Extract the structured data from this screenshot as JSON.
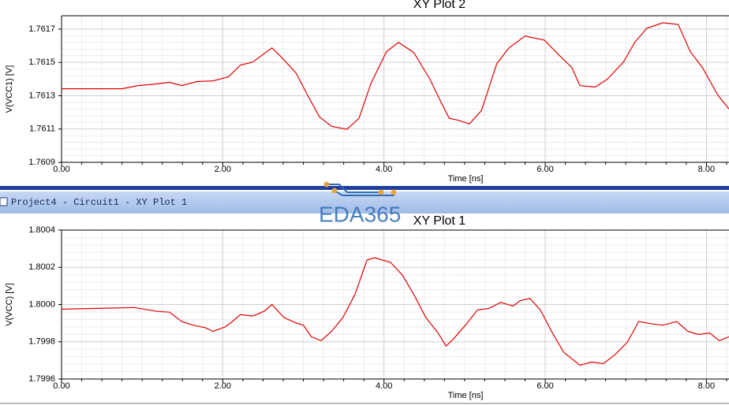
{
  "window_title": "Project4 - Circuit1 - XY Plot 1",
  "watermark": "EDA365",
  "chart_data": [
    {
      "type": "line",
      "title": "XY Plot 2",
      "x_label": "Time [ns]",
      "y_label": "V(VCC1) [V]",
      "xlim": [
        0,
        8.28
      ],
      "ylim": [
        1.7609,
        1.76178
      ],
      "xticks": [
        {
          "value": 0,
          "label": "0.00"
        },
        {
          "value": 2,
          "label": "2.00"
        },
        {
          "value": 4,
          "label": "4.00"
        },
        {
          "value": 6,
          "label": "6.00"
        },
        {
          "value": 8,
          "label": "8.00"
        }
      ],
      "yticks": [
        1.7609,
        1.7611,
        1.7613,
        1.7615,
        1.7617
      ],
      "grid": true,
      "series": [
        {
          "color": "#e00000",
          "x": [
            0,
            0.75,
            0.95,
            1.19,
            1.34,
            1.49,
            1.68,
            1.88,
            2.07,
            2.22,
            2.37,
            2.61,
            2.71,
            2.91,
            3.05,
            3.2,
            3.35,
            3.54,
            3.69,
            3.84,
            4.03,
            4.18,
            4.37,
            4.57,
            4.72,
            4.81,
            4.91,
            5.06,
            5.21,
            5.4,
            5.55,
            5.75,
            5.99,
            6.18,
            6.33,
            6.43,
            6.62,
            6.77,
            6.97,
            7.11,
            7.26,
            7.46,
            7.65,
            7.8,
            7.95,
            8.14,
            8.28
          ],
          "values": [
            1.761342,
            1.761342,
            1.761361,
            1.761371,
            1.76138,
            1.761361,
            1.761385,
            1.761389,
            1.761413,
            1.761484,
            1.761502,
            1.761587,
            1.76154,
            1.761436,
            1.761305,
            1.761173,
            1.761116,
            1.761098,
            1.761164,
            1.761375,
            1.761564,
            1.76162,
            1.761559,
            1.761399,
            1.761248,
            1.761164,
            1.761154,
            1.761131,
            1.761211,
            1.761493,
            1.761587,
            1.761658,
            1.761634,
            1.76154,
            1.761469,
            1.761361,
            1.761352,
            1.761399,
            1.761502,
            1.76162,
            1.761705,
            1.761738,
            1.761728,
            1.761564,
            1.761469,
            1.761305,
            1.76122
          ]
        }
      ]
    },
    {
      "type": "line",
      "title": "XY Plot 1",
      "x_label": "Time [ns]",
      "y_label": "V(VCC) [V]",
      "xlim": [
        0,
        8.28
      ],
      "ylim": [
        1.7996,
        1.8004
      ],
      "xticks": [
        {
          "value": 0,
          "label": "0.00"
        },
        {
          "value": 2,
          "label": "2.00"
        },
        {
          "value": 4,
          "label": "4.00"
        },
        {
          "value": 6,
          "label": "6.00"
        },
        {
          "value": 8,
          "label": "8.00"
        }
      ],
      "yticks": [
        1.7996,
        1.7998,
        {
          "value": 1.8,
          "label": "1.8000"
        },
        1.8002,
        1.8004
      ],
      "grid": true,
      "series": [
        {
          "color": "#e00000",
          "x": [
            0,
            0.9,
            1.19,
            1.34,
            1.49,
            1.63,
            1.78,
            1.88,
            2.03,
            2.12,
            2.22,
            2.37,
            2.51,
            2.61,
            2.76,
            2.91,
            3.0,
            3.1,
            3.22,
            3.35,
            3.49,
            3.64,
            3.79,
            3.88,
            4.08,
            4.23,
            4.37,
            4.52,
            4.67,
            4.77,
            4.86,
            5.01,
            5.16,
            5.3,
            5.45,
            5.6,
            5.69,
            5.81,
            5.94,
            6.09,
            6.23,
            6.43,
            6.58,
            6.72,
            6.87,
            7.02,
            7.16,
            7.31,
            7.46,
            7.63,
            7.77,
            7.9,
            8.04,
            8.16,
            8.28
          ],
          "values": [
            1.799975,
            1.799984,
            1.799963,
            1.799959,
            1.799909,
            1.799889,
            1.799876,
            1.799856,
            1.79988,
            1.799909,
            1.799946,
            1.799938,
            1.799963,
            1.8,
            1.79993,
            1.799901,
            1.799889,
            1.799827,
            1.799806,
            1.799856,
            1.79993,
            1.800054,
            1.800239,
            1.800252,
            1.800227,
            1.800157,
            1.800054,
            1.79993,
            1.799847,
            1.799777,
            1.799814,
            1.799889,
            1.799971,
            1.799979,
            1.800012,
            1.799992,
            1.800021,
            1.800033,
            1.799971,
            1.799847,
            1.799744,
            1.799674,
            1.799691,
            1.799682,
            1.799732,
            1.799798,
            1.799909,
            1.799897,
            1.799889,
            1.799909,
            1.799856,
            1.799839,
            1.799847,
            1.799806,
            1.799827
          ]
        }
      ]
    }
  ]
}
